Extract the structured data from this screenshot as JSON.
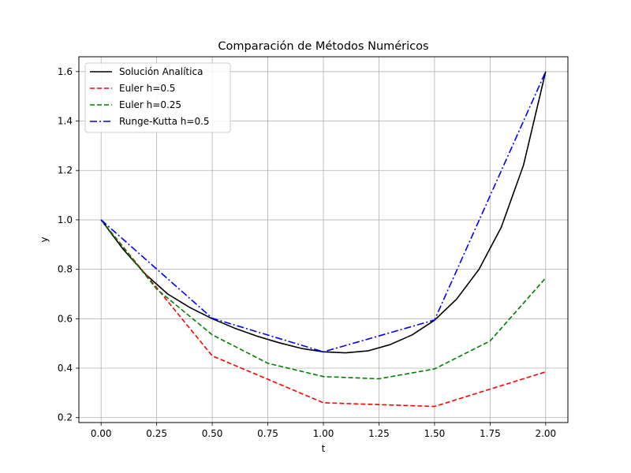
{
  "chart_data": {
    "type": "line",
    "title": "Comparación de Métodos Numéricos",
    "xlabel": "t",
    "ylabel": "y",
    "xlim": [
      -0.1,
      2.1
    ],
    "ylim": [
      0.18,
      1.66
    ],
    "xticks": [
      0.0,
      0.25,
      0.5,
      0.75,
      1.0,
      1.25,
      1.5,
      1.75,
      2.0
    ],
    "xtick_labels": [
      "0.00",
      "0.25",
      "0.50",
      "0.75",
      "1.00",
      "1.25",
      "1.50",
      "1.75",
      "2.00"
    ],
    "yticks": [
      0.2,
      0.4,
      0.6,
      0.8,
      1.0,
      1.2,
      1.4,
      1.6
    ],
    "ytick_labels": [
      "0.2",
      "0.4",
      "0.6",
      "0.8",
      "1.0",
      "1.2",
      "1.4",
      "1.6"
    ],
    "grid": true,
    "legend_position": "top-left",
    "series": [
      {
        "name": "Solución Analítica",
        "color": "#000000",
        "style": "solid",
        "x": [
          0.0,
          0.1,
          0.2,
          0.3,
          0.4,
          0.5,
          0.6,
          0.7,
          0.8,
          0.9,
          1.0,
          1.1,
          1.2,
          1.3,
          1.4,
          1.5,
          1.6,
          1.7,
          1.8,
          1.9,
          2.0
        ],
        "y": [
          1.0,
          0.88,
          0.78,
          0.7,
          0.645,
          0.6,
          0.562,
          0.53,
          0.503,
          0.48,
          0.466,
          0.462,
          0.47,
          0.495,
          0.535,
          0.594,
          0.68,
          0.8,
          0.97,
          1.22,
          1.6
        ]
      },
      {
        "name": "Euler h=0.5",
        "color": "#ff0000",
        "style": "dashed",
        "x": [
          0.0,
          0.5,
          1.0,
          1.5,
          2.0
        ],
        "y": [
          1.0,
          0.45,
          0.26,
          0.245,
          0.385
        ]
      },
      {
        "name": "Euler h=0.25",
        "color": "#008000",
        "style": "dashed",
        "x": [
          0.0,
          0.25,
          0.5,
          0.75,
          1.0,
          1.25,
          1.5,
          1.75,
          2.0
        ],
        "y": [
          1.0,
          0.72,
          0.535,
          0.42,
          0.366,
          0.357,
          0.397,
          0.51,
          0.765
        ]
      },
      {
        "name": "Runge-Kutta h=0.5",
        "color": "#0000ff",
        "style": "dashdot",
        "x": [
          0.0,
          0.5,
          1.0,
          1.5,
          2.0
        ],
        "y": [
          1.0,
          0.602,
          0.466,
          0.595,
          1.6
        ]
      }
    ]
  }
}
